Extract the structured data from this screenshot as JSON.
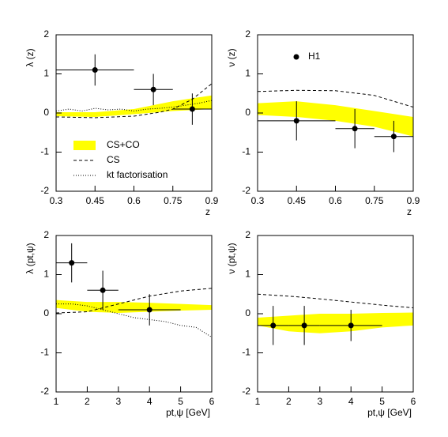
{
  "chart_data": [
    {
      "type": "line",
      "ylabel": "λ (z)",
      "xlabel": "z",
      "xlim": [
        0.3,
        0.9
      ],
      "xticks": [
        0.3,
        0.45,
        0.6,
        0.75,
        0.9
      ],
      "ylim": [
        -2,
        2
      ],
      "yticks": [
        -2,
        -1,
        0,
        1,
        2
      ],
      "legend": "lower left",
      "series": [
        {
          "name": "CS+CO",
          "style": "band",
          "color": "#ffff00",
          "x": [
            0.3,
            0.45,
            0.6,
            0.75,
            0.9
          ],
          "lower": [
            -0.08,
            -0.1,
            -0.03,
            0.05,
            0.1
          ],
          "upper": [
            0.02,
            0.02,
            0.1,
            0.3,
            0.45
          ]
        },
        {
          "name": "CS",
          "style": "dashed",
          "color": "#000000",
          "x": [
            0.3,
            0.45,
            0.6,
            0.7,
            0.75,
            0.825,
            0.9
          ],
          "values": [
            -0.1,
            -0.12,
            -0.08,
            0.02,
            0.1,
            0.35,
            0.75
          ]
        },
        {
          "name": "kt factorisation",
          "style": "dotted",
          "color": "#000000",
          "x": [
            0.3,
            0.35,
            0.4,
            0.45,
            0.5,
            0.55,
            0.6,
            0.65,
            0.7,
            0.75,
            0.8,
            0.85,
            0.9
          ],
          "values": [
            0.05,
            0.1,
            0.05,
            0.12,
            0.08,
            0.1,
            0.05,
            0.1,
            0.12,
            0.15,
            0.2,
            0.25,
            0.32
          ]
        },
        {
          "style": "points",
          "color": "#000000",
          "x": [
            0.45,
            0.675,
            0.825
          ],
          "values": [
            1.1,
            0.6,
            0.1
          ],
          "yerr": [
            0.4,
            0.4,
            0.4
          ],
          "xerr": [
            0.15,
            0.075,
            0.075
          ]
        }
      ]
    },
    {
      "type": "line",
      "ylabel": "ν (z)",
      "xlabel": "z",
      "xlim": [
        0.3,
        0.9
      ],
      "xticks": [
        0.3,
        0.45,
        0.6,
        0.75,
        0.9
      ],
      "ylim": [
        -2,
        2
      ],
      "yticks": [
        -2,
        -1,
        0,
        1,
        2
      ],
      "legend": "upper left",
      "series": [
        {
          "style": "band",
          "color": "#ffff00",
          "x": [
            0.3,
            0.45,
            0.6,
            0.75,
            0.9
          ],
          "lower": [
            -0.05,
            -0.1,
            -0.2,
            -0.35,
            -0.6
          ],
          "upper": [
            0.25,
            0.3,
            0.2,
            0.05,
            -0.1
          ]
        },
        {
          "style": "dashed",
          "color": "#000000",
          "x": [
            0.3,
            0.45,
            0.6,
            0.75,
            0.9
          ],
          "values": [
            0.55,
            0.58,
            0.57,
            0.45,
            0.15
          ]
        },
        {
          "name": "H1",
          "style": "points",
          "color": "#000000",
          "x": [
            0.45,
            0.675,
            0.825
          ],
          "values": [
            -0.2,
            -0.4,
            -0.6
          ],
          "yerr": [
            0.5,
            0.5,
            0.4
          ],
          "xerr": [
            0.15,
            0.075,
            0.075
          ]
        }
      ]
    },
    {
      "type": "line",
      "ylabel": "λ (pt,ψ)",
      "xlabel": "pt,ψ [GeV]",
      "xlim": [
        1,
        6
      ],
      "xticks": [
        1,
        2,
        3,
        4,
        5,
        6
      ],
      "ylim": [
        -2,
        2
      ],
      "yticks": [
        -2,
        -1,
        0,
        1,
        2
      ],
      "series": [
        {
          "style": "band",
          "color": "#ffff00",
          "x": [
            1,
            2,
            3,
            4,
            5,
            6
          ],
          "lower": [
            0.15,
            0.05,
            0.02,
            0.05,
            0.08,
            0.1
          ],
          "upper": [
            0.35,
            0.3,
            0.3,
            0.28,
            0.25,
            0.22
          ]
        },
        {
          "style": "dashed",
          "color": "#000000",
          "x": [
            1,
            2,
            3,
            4,
            5,
            6
          ],
          "values": [
            0.02,
            0.05,
            0.25,
            0.45,
            0.58,
            0.65
          ]
        },
        {
          "style": "dotted",
          "color": "#000000",
          "x": [
            1,
            1.5,
            2,
            2.5,
            3,
            3.5,
            4,
            4.5,
            5,
            5.5,
            6
          ],
          "values": [
            0.25,
            0.25,
            0.2,
            0.1,
            0,
            -0.1,
            -0.15,
            -0.2,
            -0.3,
            -0.35,
            -0.6
          ]
        },
        {
          "style": "points",
          "color": "#000000",
          "x": [
            1.5,
            2.5,
            4
          ],
          "values": [
            1.3,
            0.6,
            0.1
          ],
          "yerr": [
            0.5,
            0.5,
            0.4
          ],
          "xerr": [
            0.5,
            0.5,
            1
          ]
        }
      ]
    },
    {
      "type": "line",
      "ylabel": "ν (pt,ψ)",
      "xlabel": "pt,ψ [GeV]",
      "xlim": [
        1,
        6
      ],
      "xticks": [
        1,
        2,
        3,
        4,
        5,
        6
      ],
      "ylim": [
        -2,
        2
      ],
      "yticks": [
        -2,
        -1,
        0,
        1,
        2
      ],
      "series": [
        {
          "style": "band",
          "color": "#ffff00",
          "x": [
            1,
            2,
            3,
            4,
            5,
            6
          ],
          "lower": [
            -0.3,
            -0.45,
            -0.5,
            -0.45,
            -0.35,
            -0.3
          ],
          "upper": [
            -0.1,
            -0.05,
            0,
            0,
            0.02,
            0.03
          ]
        },
        {
          "style": "dashed",
          "color": "#000000",
          "x": [
            1,
            2,
            3,
            4,
            5,
            6
          ],
          "values": [
            0.5,
            0.45,
            0.38,
            0.3,
            0.22,
            0.15
          ]
        },
        {
          "style": "points",
          "color": "#000000",
          "x": [
            1.5,
            2.5,
            4
          ],
          "values": [
            -0.3,
            -0.3,
            -0.3
          ],
          "yerr": [
            0.5,
            0.5,
            0.4
          ],
          "xerr": [
            0.5,
            0.5,
            1
          ]
        }
      ]
    }
  ]
}
